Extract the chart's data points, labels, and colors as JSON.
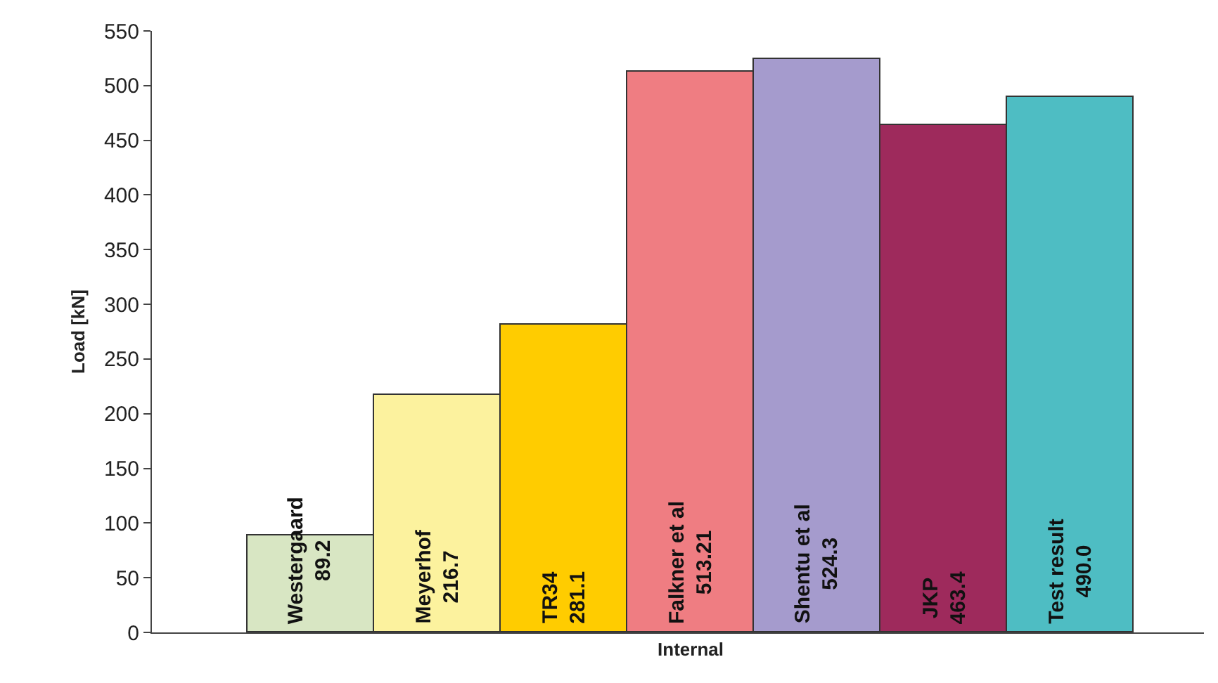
{
  "chart_data": {
    "type": "bar",
    "ylabel": "Load [kN]",
    "categories": [
      "Internal"
    ],
    "series": [
      {
        "name": "Westergaard",
        "color": "#d8e6c3",
        "values": [
          89.2
        ],
        "value_labels": [
          "89.2"
        ]
      },
      {
        "name": "Meyerhof",
        "color": "#fcf29e",
        "values": [
          216.7
        ],
        "value_labels": [
          "216.7"
        ]
      },
      {
        "name": "TR34",
        "color": "#ffcc00",
        "values": [
          281.1
        ],
        "value_labels": [
          "281.1"
        ]
      },
      {
        "name": "Falkner et al",
        "color": "#ef7d82",
        "values": [
          513.21
        ],
        "value_labels": [
          "513.21"
        ]
      },
      {
        "name": "Shentu et al",
        "color": "#a59bcd",
        "values": [
          524.3
        ],
        "value_labels": [
          "524.3"
        ]
      },
      {
        "name": "JKP",
        "color": "#9e2a5c",
        "values": [
          463.4
        ],
        "value_labels": [
          "463.4"
        ]
      },
      {
        "name": "Test result",
        "color": "#4ebdc3",
        "values": [
          490.0
        ],
        "value_labels": [
          "490.0"
        ]
      }
    ],
    "ylim": [
      0,
      550
    ],
    "yticks": [
      0,
      50,
      100,
      150,
      200,
      250,
      300,
      350,
      400,
      450,
      500,
      550
    ],
    "legend": false
  }
}
